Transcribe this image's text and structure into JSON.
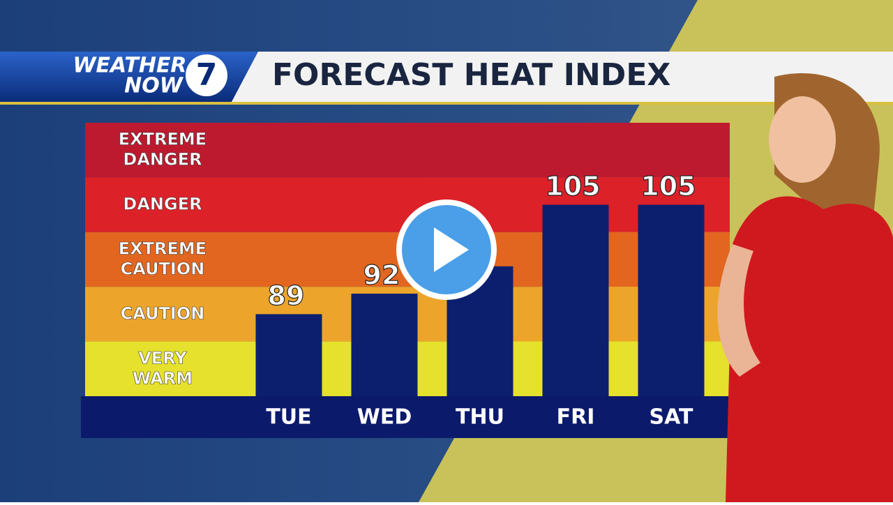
{
  "logo": {
    "line1": "WEATHER",
    "line2": "NOW",
    "number": "7"
  },
  "chart_data": {
    "type": "bar",
    "title": "FORECAST HEAT INDEX",
    "categories": [
      "TUE",
      "WED",
      "THU",
      "FRI",
      "SAT"
    ],
    "values": [
      89,
      92,
      96,
      105,
      105
    ],
    "color": "#0c1f6f",
    "ylim": [
      77,
      117
    ],
    "bands": [
      {
        "lines": [
          "EXTREME",
          "DANGER"
        ],
        "color": "#bd1a30"
      },
      {
        "lines": [
          "DANGER"
        ],
        "color": "#dc2129"
      },
      {
        "lines": [
          "EXTREME",
          "CAUTION"
        ],
        "color": "#e2661f"
      },
      {
        "lines": [
          "CAUTION"
        ],
        "color": "#eca52a"
      },
      {
        "lines": [
          "VERY",
          "WARM"
        ],
        "color": "#e5e12c"
      }
    ]
  }
}
